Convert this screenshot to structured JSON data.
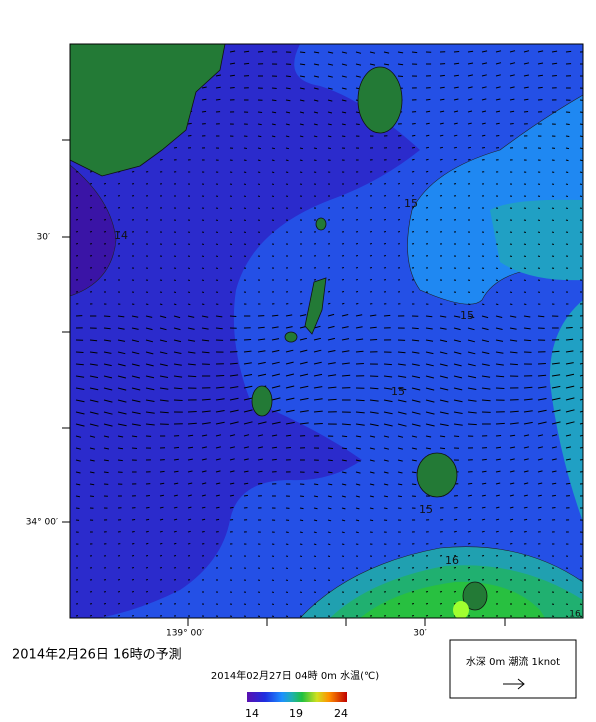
{
  "map": {
    "axes": {
      "left_labels": [
        "30′",
        "34° 00′"
      ],
      "bottom_labels": [
        "139° 00′",
        "30′"
      ]
    },
    "contour_labels": [
      "14",
      "15",
      "15",
      "15",
      "15",
      "16",
      "16"
    ],
    "title": "2014年2月26日  16時の予測",
    "subtitle": "2014年02月27日 04時 0m 水温(℃)",
    "colorbar": {
      "labels": [
        "14",
        "19",
        "24"
      ]
    },
    "legend": {
      "label": "水深 0m 潮流 1knot"
    }
  }
}
